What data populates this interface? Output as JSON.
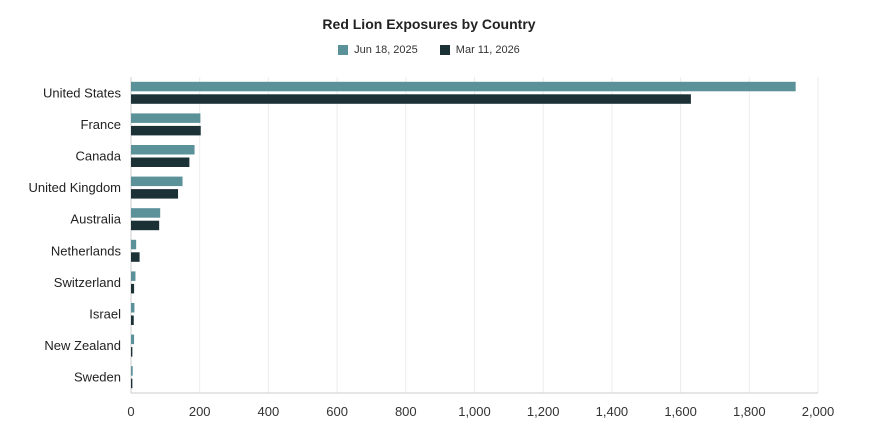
{
  "chart_data": {
    "type": "bar",
    "orientation": "horizontal",
    "title": "Red Lion Exposures by Country",
    "xlabel": "",
    "ylabel": "",
    "categories": [
      "United States",
      "France",
      "Canada",
      "United Kingdom",
      "Australia",
      "Netherlands",
      "Switzerland",
      "Israel",
      "New Zealand",
      "Sweden"
    ],
    "series": [
      {
        "name": "Jun 18, 2025",
        "color": "#5b9199",
        "values": [
          1935,
          202,
          185,
          150,
          85,
          15,
          13,
          10,
          9,
          5
        ]
      },
      {
        "name": "Mar 11, 2026",
        "color": "#1b3136",
        "values": [
          1630,
          203,
          170,
          137,
          82,
          25,
          9,
          8,
          4,
          4
        ]
      }
    ],
    "xlim": [
      0,
      2000
    ],
    "xticks": [
      0,
      200,
      400,
      600,
      800,
      1000,
      1200,
      1400,
      1600,
      1800,
      2000
    ],
    "xtick_labels": [
      "0",
      "200",
      "400",
      "600",
      "800",
      "1,000",
      "1,200",
      "1,400",
      "1,600",
      "1,800",
      "2,000"
    ],
    "grid": "vertical",
    "legend_position": "top-center"
  }
}
